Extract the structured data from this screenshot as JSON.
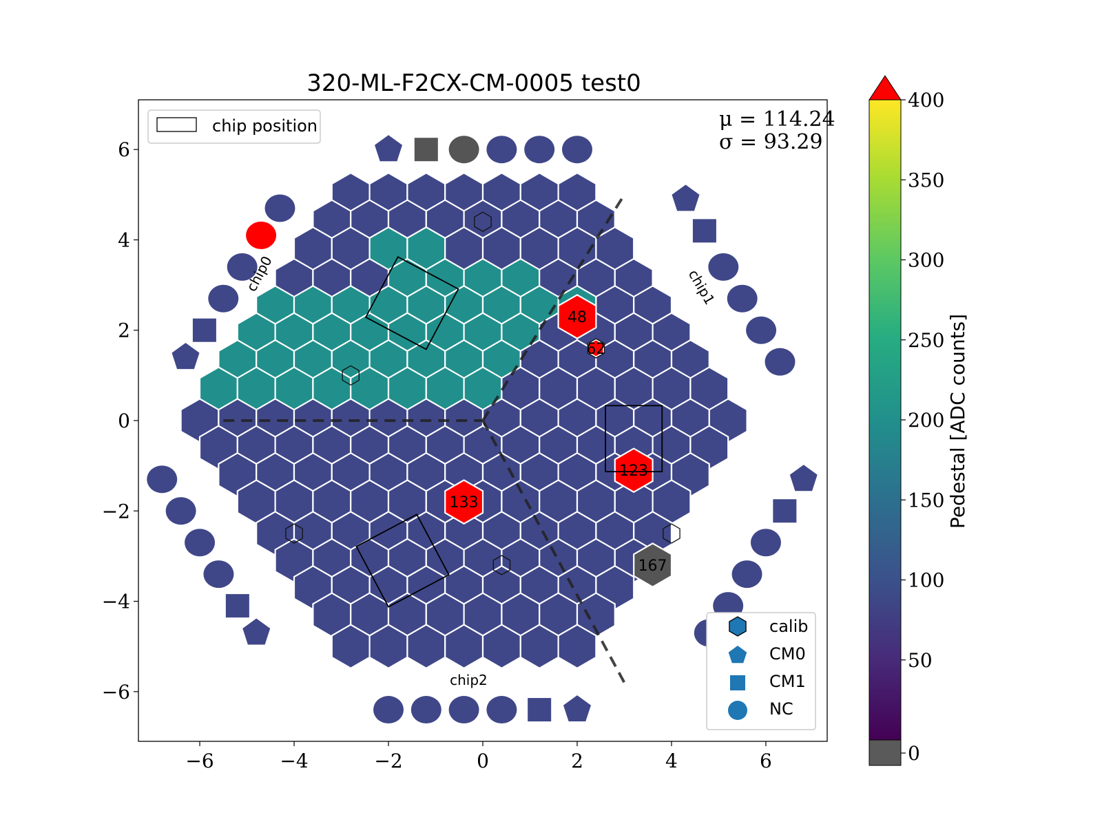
{
  "chart_data": {
    "type": "heatmap",
    "title": "320-ML-F2CX-CM-0005 test0",
    "stats": {
      "mu": "μ = 114.24",
      "sigma": "σ = 93.29"
    },
    "xlim": [
      -7.3,
      7.3
    ],
    "ylim": [
      -7.1,
      7.1
    ],
    "xticks": [
      -6,
      -4,
      -2,
      0,
      2,
      4,
      6
    ],
    "yticks": [
      -6,
      -4,
      -2,
      0,
      2,
      4,
      6
    ],
    "colorbar": {
      "label": "Pedestal [ADC counts]",
      "range": [
        0,
        400
      ],
      "ticks": [
        0,
        50,
        100,
        150,
        200,
        250,
        300,
        350,
        400
      ],
      "extend_max_color": "#ff0000",
      "under_color": "#5a5a5a"
    },
    "colors": {
      "low_pedestal": "#3f4788",
      "high_pedestal": "#21908c",
      "saturated": "#ff0000",
      "dead": "#555555"
    },
    "legend_top": {
      "label": "chip position"
    },
    "legend_bottom": [
      {
        "marker": "hexagon",
        "label": "calib"
      },
      {
        "marker": "pentagon",
        "label": "CM0"
      },
      {
        "marker": "square",
        "label": "CM1"
      },
      {
        "marker": "circle",
        "label": "NC"
      }
    ],
    "chip_labels": [
      {
        "text": "chip0",
        "x": -4.65,
        "y": 3.2,
        "rot": -62
      },
      {
        "text": "chip1",
        "x": 4.55,
        "y": 2.9,
        "rot": 60
      },
      {
        "text": "chip2",
        "x": -0.3,
        "y": -5.85,
        "rot": 0
      }
    ],
    "hex_grid": {
      "rows": [
        {
          "y": 5.0,
          "x_start": -2.8,
          "count": 7
        },
        {
          "y": 4.4,
          "x_start": -3.2,
          "count": 8
        },
        {
          "y": 3.8,
          "x_start": -3.6,
          "count": 9
        },
        {
          "y": 3.1,
          "x_start": -4.0,
          "count": 10
        },
        {
          "y": 2.5,
          "x_start": -4.4,
          "count": 11
        },
        {
          "y": 1.9,
          "x_start": -4.8,
          "count": 12
        },
        {
          "y": 1.3,
          "x_start": -5.2,
          "count": 13
        },
        {
          "y": 0.7,
          "x_start": -5.6,
          "count": 14
        },
        {
          "y": 0.0,
          "x_start": -6.0,
          "count": 15
        },
        {
          "y": -0.6,
          "x_start": -5.6,
          "count": 14
        },
        {
          "y": -1.2,
          "x_start": -5.2,
          "count": 13
        },
        {
          "y": -1.8,
          "x_start": -4.8,
          "count": 12
        },
        {
          "y": -2.5,
          "x_start": -4.4,
          "count": 11
        },
        {
          "y": -3.1,
          "x_start": -4.0,
          "count": 10
        },
        {
          "y": -3.7,
          "x_start": -3.6,
          "count": 9
        },
        {
          "y": -4.3,
          "x_start": -3.2,
          "count": 8
        },
        {
          "y": -5.0,
          "x_start": -2.8,
          "count": 7
        }
      ],
      "spacing": 0.8,
      "default_value": 90
    },
    "high_cells": [
      [
        2,
        2
      ],
      [
        2,
        3
      ],
      [
        3,
        3
      ],
      [
        3,
        4
      ],
      [
        3,
        5
      ],
      [
        3,
        6
      ],
      [
        4,
        0
      ],
      [
        4,
        1
      ],
      [
        4,
        2
      ],
      [
        4,
        3
      ],
      [
        4,
        4
      ],
      [
        4,
        5
      ],
      [
        4,
        6
      ],
      [
        4,
        7
      ],
      [
        4,
        8
      ],
      [
        5,
        0
      ],
      [
        5,
        1
      ],
      [
        5,
        2
      ],
      [
        5,
        3
      ],
      [
        5,
        4
      ],
      [
        5,
        5
      ],
      [
        5,
        6
      ],
      [
        5,
        7
      ],
      [
        6,
        0
      ],
      [
        6,
        1
      ],
      [
        6,
        2
      ],
      [
        6,
        3
      ],
      [
        6,
        4
      ],
      [
        6,
        5
      ],
      [
        6,
        6
      ],
      [
        6,
        7
      ],
      [
        7,
        0
      ],
      [
        7,
        1
      ],
      [
        7,
        2
      ],
      [
        7,
        3
      ],
      [
        7,
        4
      ],
      [
        7,
        5
      ],
      [
        7,
        6
      ],
      [
        7,
        7
      ]
    ],
    "special_cells": [
      {
        "label": "48",
        "x": 2.0,
        "y": 2.3,
        "value": "saturated"
      },
      {
        "label": "62",
        "x": 2.4,
        "y": 1.6,
        "value": "saturated_small"
      },
      {
        "label": "123",
        "x": 3.2,
        "y": -1.1,
        "value": "saturated"
      },
      {
        "label": "133",
        "x": -0.4,
        "y": -1.8,
        "value": "saturated"
      },
      {
        "label": "167",
        "x": 3.6,
        "y": -3.2,
        "value": "dead"
      }
    ],
    "calib_markers": [
      {
        "x": 0.0,
        "y": 4.4
      },
      {
        "x": -2.8,
        "y": 1.0
      },
      {
        "x": -4.0,
        "y": -2.5
      },
      {
        "x": 0.4,
        "y": -3.2
      },
      {
        "x": 4.0,
        "y": -2.5
      },
      {
        "x": 2.4,
        "y": 1.6
      }
    ],
    "periphery": [
      {
        "shape": "pentagon",
        "x": -2.0,
        "y": 6.0,
        "fill": "low"
      },
      {
        "shape": "square",
        "x": -1.2,
        "y": 6.0,
        "fill": "dead"
      },
      {
        "shape": "circle",
        "x": -0.4,
        "y": 6.0,
        "fill": "dead"
      },
      {
        "shape": "circle",
        "x": 0.4,
        "y": 6.0,
        "fill": "low"
      },
      {
        "shape": "circle",
        "x": 1.2,
        "y": 6.0,
        "fill": "low"
      },
      {
        "shape": "circle",
        "x": 2.0,
        "y": 6.0,
        "fill": "low"
      },
      {
        "shape": "circle",
        "x": -4.3,
        "y": 4.7,
        "fill": "low"
      },
      {
        "shape": "circle",
        "x": -4.7,
        "y": 4.1,
        "fill": "saturated"
      },
      {
        "shape": "circle",
        "x": -5.1,
        "y": 3.4,
        "fill": "low"
      },
      {
        "shape": "circle",
        "x": -5.5,
        "y": 2.7,
        "fill": "low"
      },
      {
        "shape": "square",
        "x": -5.9,
        "y": 2.0,
        "fill": "low"
      },
      {
        "shape": "pentagon",
        "x": -6.3,
        "y": 1.4,
        "fill": "low"
      },
      {
        "shape": "pentagon",
        "x": 4.3,
        "y": 4.9,
        "fill": "low"
      },
      {
        "shape": "square",
        "x": 4.7,
        "y": 4.2,
        "fill": "low"
      },
      {
        "shape": "circle",
        "x": 5.1,
        "y": 3.4,
        "fill": "low"
      },
      {
        "shape": "circle",
        "x": 5.5,
        "y": 2.7,
        "fill": "low"
      },
      {
        "shape": "circle",
        "x": 5.9,
        "y": 2.0,
        "fill": "low"
      },
      {
        "shape": "circle",
        "x": 6.3,
        "y": 1.3,
        "fill": "low"
      },
      {
        "shape": "circle",
        "x": -6.8,
        "y": -1.3,
        "fill": "low"
      },
      {
        "shape": "circle",
        "x": -6.4,
        "y": -2.0,
        "fill": "low"
      },
      {
        "shape": "circle",
        "x": -6.0,
        "y": -2.7,
        "fill": "low"
      },
      {
        "shape": "circle",
        "x": -5.6,
        "y": -3.4,
        "fill": "low"
      },
      {
        "shape": "square",
        "x": -5.2,
        "y": -4.1,
        "fill": "low"
      },
      {
        "shape": "pentagon",
        "x": -4.8,
        "y": -4.7,
        "fill": "low"
      },
      {
        "shape": "pentagon",
        "x": 6.8,
        "y": -1.3,
        "fill": "low"
      },
      {
        "shape": "square",
        "x": 6.4,
        "y": -2.0,
        "fill": "low"
      },
      {
        "shape": "circle",
        "x": 6.0,
        "y": -2.7,
        "fill": "low"
      },
      {
        "shape": "circle",
        "x": 5.6,
        "y": -3.4,
        "fill": "low"
      },
      {
        "shape": "circle",
        "x": 5.2,
        "y": -4.1,
        "fill": "low"
      },
      {
        "shape": "circle",
        "x": 4.8,
        "y": -4.7,
        "fill": "low"
      },
      {
        "shape": "circle",
        "x": -2.0,
        "y": -6.4,
        "fill": "low"
      },
      {
        "shape": "circle",
        "x": -1.2,
        "y": -6.4,
        "fill": "low"
      },
      {
        "shape": "circle",
        "x": -0.4,
        "y": -6.4,
        "fill": "low"
      },
      {
        "shape": "circle",
        "x": 0.4,
        "y": -6.4,
        "fill": "low"
      },
      {
        "shape": "square",
        "x": 1.2,
        "y": -6.4,
        "fill": "low"
      },
      {
        "shape": "pentagon",
        "x": 2.0,
        "y": -6.4,
        "fill": "low"
      }
    ],
    "chip_boxes": [
      {
        "cx": -1.5,
        "cy": 2.6,
        "w": 1.45,
        "h": 1.45,
        "rot": 28
      },
      {
        "cx": 3.2,
        "cy": -0.4,
        "w": 1.2,
        "h": 1.4,
        "rot": 0
      },
      {
        "cx": -1.7,
        "cy": -3.1,
        "w": 1.45,
        "h": 1.45,
        "rot": -28
      }
    ],
    "dashed_lines": [
      [
        [
          -5.5,
          0.0
        ],
        [
          0.0,
          0.0
        ]
      ],
      [
        [
          0.0,
          0.0
        ],
        [
          3.0,
          5.0
        ]
      ],
      [
        [
          0.0,
          0.0
        ],
        [
          3.0,
          -5.8
        ]
      ]
    ]
  }
}
